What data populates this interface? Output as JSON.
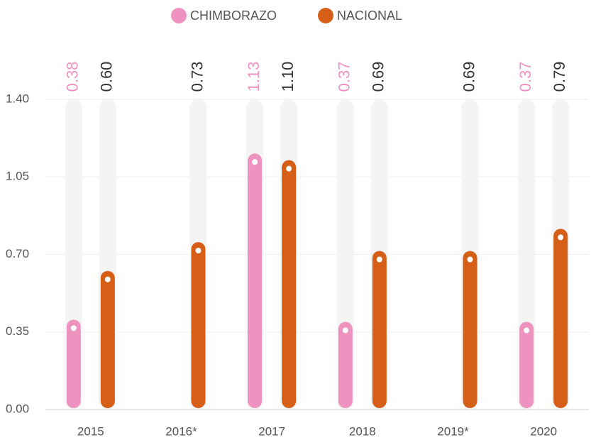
{
  "chart_data": {
    "type": "bar",
    "categories": [
      "2015",
      "2016*",
      "2017",
      "2018",
      "2019*",
      "2020"
    ],
    "series": [
      {
        "name": "CHIMBORAZO",
        "color": "#ee93c0",
        "label_color": "#ee93c0",
        "values": [
          0.38,
          null,
          1.13,
          0.37,
          null,
          0.37
        ],
        "value_labels": [
          "0.38",
          null,
          "1.13",
          "0.37",
          null,
          "0.37"
        ]
      },
      {
        "name": "NACIONAL",
        "color": "#d65f17",
        "label_color": "#333333",
        "values": [
          0.6,
          0.73,
          1.1,
          0.69,
          0.69,
          0.79
        ],
        "value_labels": [
          "0.60",
          "0.73",
          "1.10",
          "0.69",
          "0.69",
          "0.79"
        ]
      }
    ],
    "ylim": [
      0,
      1.4
    ],
    "yticks": [
      {
        "value": 0,
        "label": "0.00"
      },
      0.35,
      {
        "value": 0.7,
        "label": "0.70"
      },
      1.05,
      {
        "value": 1.4,
        "label": "1.40"
      }
    ],
    "grid": true
  }
}
